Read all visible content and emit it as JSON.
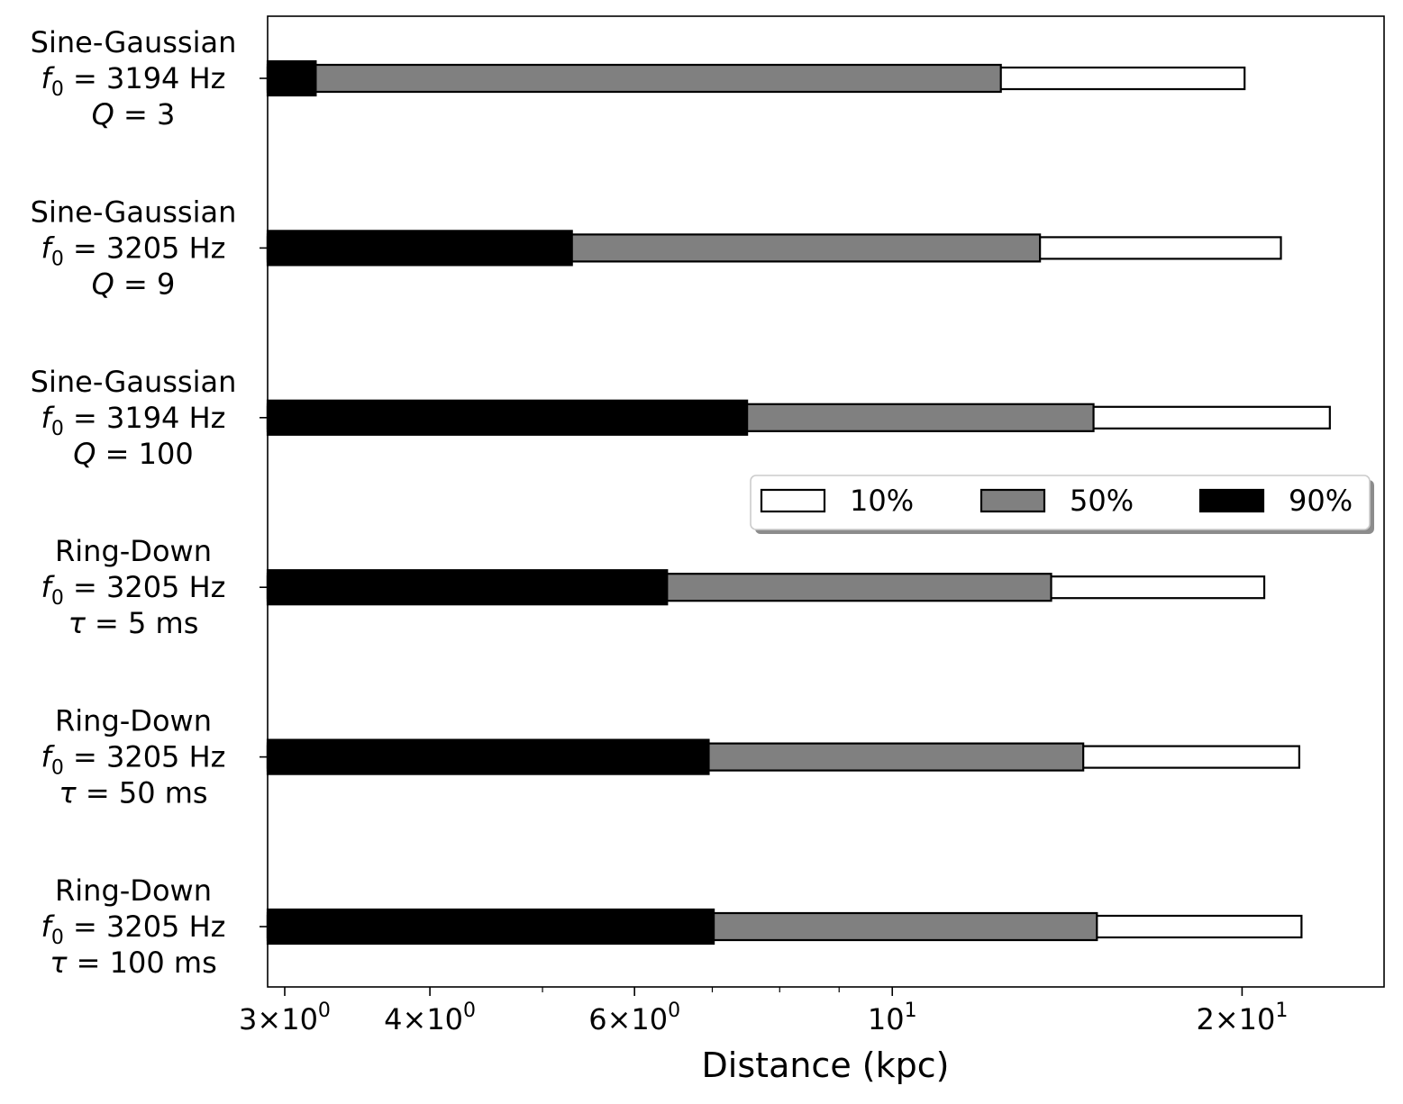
{
  "chart_data": {
    "type": "bar",
    "orientation": "horizontal",
    "x_scale": "log",
    "xlim": [
      2.9,
      26.5
    ],
    "xlabel": "Distance (kpc)",
    "ylabel": "",
    "title": "",
    "grid": false,
    "legend_position": "center-right",
    "x_major_ticks": [
      {
        "value": 3,
        "mant": "3",
        "exp": "0"
      },
      {
        "value": 4,
        "mant": "4",
        "exp": "0"
      },
      {
        "value": 6,
        "mant": "6",
        "exp": "0"
      },
      {
        "value": 10,
        "mant": "",
        "exp": "1"
      },
      {
        "value": 20,
        "mant": "2",
        "exp": "1"
      }
    ],
    "x_minor_ticks": [
      5,
      7,
      8,
      9
    ],
    "categories": [
      {
        "name": "Sine-Gaussian",
        "freq": "3194 Hz",
        "param": "Q",
        "param_value": "3"
      },
      {
        "name": "Sine-Gaussian",
        "freq": "3205 Hz",
        "param": "Q",
        "param_value": "9"
      },
      {
        "name": "Sine-Gaussian",
        "freq": "3194 Hz",
        "param": "Q",
        "param_value": "100"
      },
      {
        "name": "Ring-Down",
        "freq": "3205 Hz",
        "param": "τ",
        "param_value": "5 ms"
      },
      {
        "name": "Ring-Down",
        "freq": "3205 Hz",
        "param": "τ",
        "param_value": "50 ms"
      },
      {
        "name": "Ring-Down",
        "freq": "3205 Hz",
        "param": "τ",
        "param_value": "100 ms"
      }
    ],
    "series": [
      {
        "name": "10%",
        "color": "#ffffff",
        "values": [
          20.1,
          21.6,
          23.8,
          20.9,
          22.4,
          22.5
        ]
      },
      {
        "name": "50%",
        "color": "#808080",
        "values": [
          12.4,
          13.4,
          14.9,
          13.7,
          14.6,
          15.0
        ]
      },
      {
        "name": "90%",
        "color": "#000000",
        "values": [
          3.19,
          5.3,
          7.5,
          6.4,
          6.95,
          7.02
        ]
      }
    ]
  }
}
